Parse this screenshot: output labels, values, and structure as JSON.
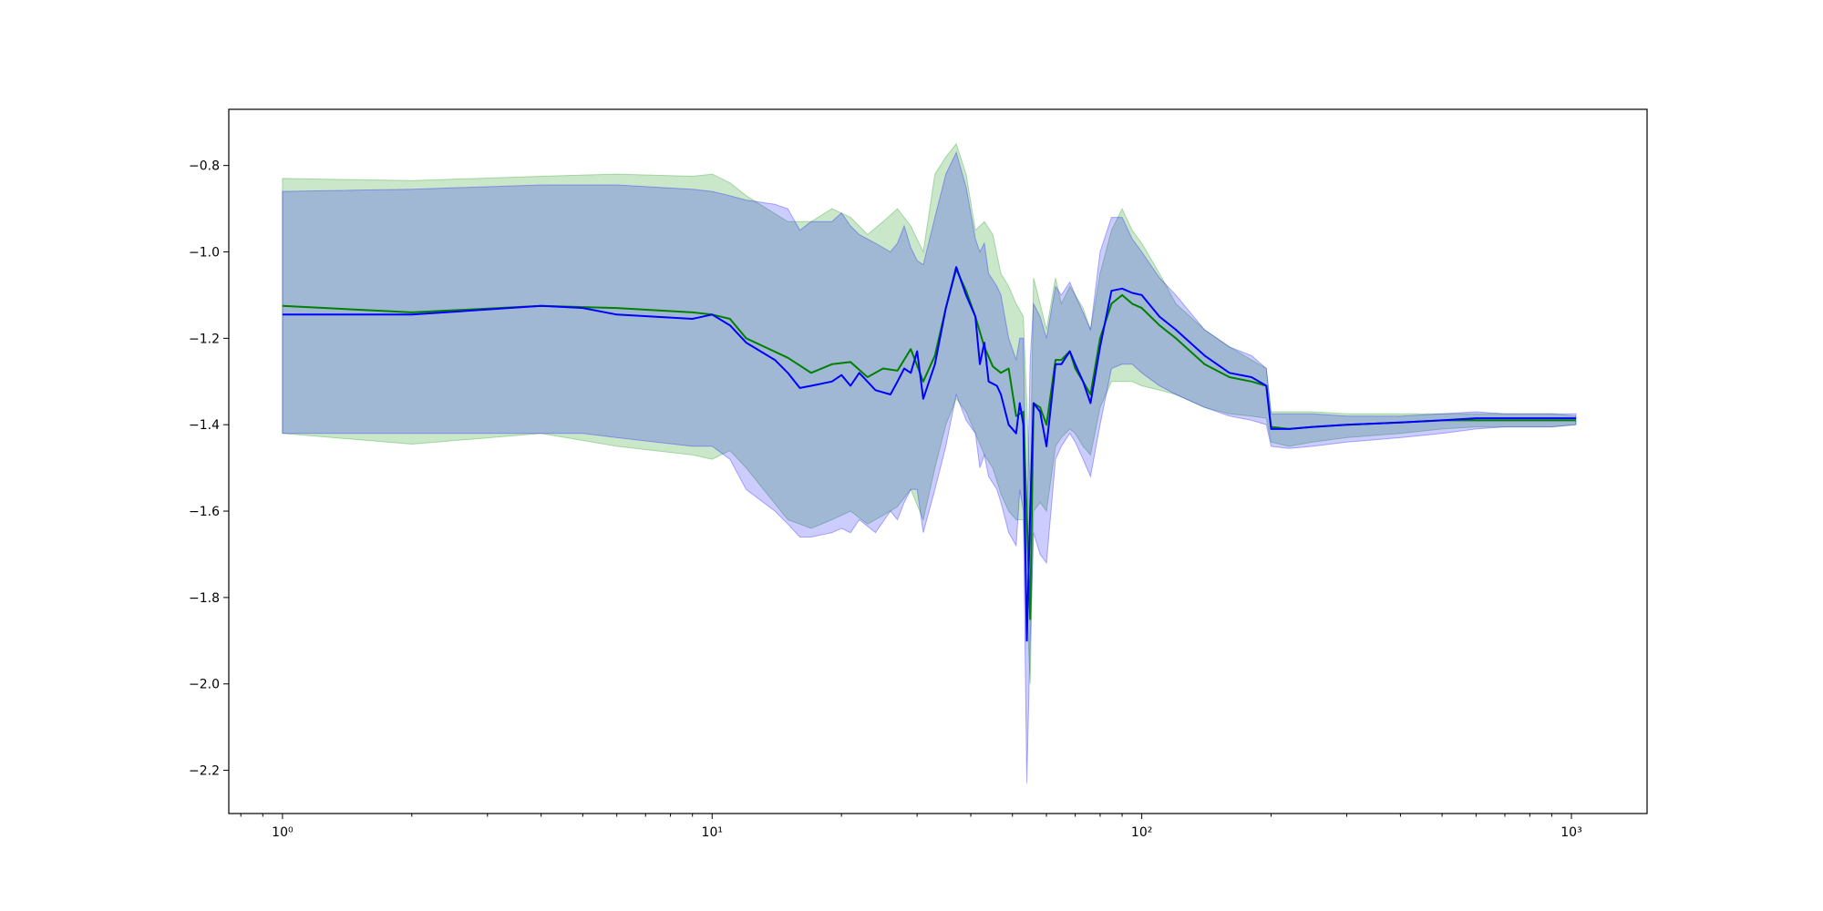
{
  "chart_data": {
    "type": "line",
    "xscale": "log",
    "xlim": [
      0.75,
      1500
    ],
    "ylim": [
      -2.3,
      -0.67
    ],
    "grid": false,
    "legend": "none",
    "title": "",
    "xlabel": "",
    "ylabel": "",
    "x_ticks": [
      {
        "value": 1,
        "label": "10⁰"
      },
      {
        "value": 10,
        "label": "10¹"
      },
      {
        "value": 100,
        "label": "10²"
      },
      {
        "value": 1000,
        "label": "10³"
      }
    ],
    "y_ticks": [
      {
        "value": -0.8,
        "label": "−0.8"
      },
      {
        "value": -1.0,
        "label": "−1.0"
      },
      {
        "value": -1.2,
        "label": "−1.2"
      },
      {
        "value": -1.4,
        "label": "−1.4"
      },
      {
        "value": -1.6,
        "label": "−1.6"
      },
      {
        "value": -1.8,
        "label": "−1.8"
      },
      {
        "value": -2.0,
        "label": "−2.0"
      },
      {
        "value": -2.2,
        "label": "−2.2"
      }
    ],
    "series": [
      {
        "color": "#008000",
        "band_color": "#2ca02c",
        "band_opacity": 0.25,
        "x": [
          1,
          2,
          4,
          6,
          9,
          10,
          11,
          12,
          15,
          17,
          19,
          21,
          23,
          25,
          27,
          29,
          31,
          33,
          35,
          37,
          39,
          41,
          43,
          45,
          47,
          49,
          51,
          53,
          55,
          56,
          58,
          60,
          63,
          65,
          68,
          70,
          73,
          76,
          80,
          85,
          90,
          95,
          100,
          110,
          120,
          140,
          160,
          180,
          195,
          200,
          220,
          250,
          300,
          400,
          500,
          600,
          700,
          800,
          900,
          1024
        ],
        "y": [
          -1.125,
          -1.14,
          -1.125,
          -1.13,
          -1.14,
          -1.145,
          -1.155,
          -1.2,
          -1.245,
          -1.28,
          -1.26,
          -1.255,
          -1.29,
          -1.27,
          -1.275,
          -1.225,
          -1.3,
          -1.24,
          -1.13,
          -1.04,
          -1.09,
          -1.15,
          -1.22,
          -1.265,
          -1.28,
          -1.27,
          -1.38,
          -1.37,
          -1.85,
          -1.35,
          -1.36,
          -1.4,
          -1.25,
          -1.25,
          -1.23,
          -1.27,
          -1.3,
          -1.33,
          -1.2,
          -1.12,
          -1.1,
          -1.12,
          -1.13,
          -1.17,
          -1.2,
          -1.26,
          -1.29,
          -1.3,
          -1.31,
          -1.405,
          -1.41,
          -1.405,
          -1.4,
          -1.395,
          -1.39,
          -1.39,
          -1.39,
          -1.39,
          -1.39,
          -1.39
        ],
        "upper": [
          -0.83,
          -0.835,
          -0.825,
          -0.82,
          -0.825,
          -0.82,
          -0.84,
          -0.87,
          -0.93,
          -0.93,
          -0.9,
          -0.92,
          -0.96,
          -0.93,
          -0.9,
          -0.94,
          -1.0,
          -0.82,
          -0.78,
          -0.75,
          -0.82,
          -0.95,
          -0.93,
          -0.96,
          -1.05,
          -1.08,
          -1.12,
          -1.15,
          -1.55,
          -1.06,
          -1.12,
          -1.18,
          -1.06,
          -1.12,
          -1.08,
          -1.1,
          -1.13,
          -1.18,
          -1.05,
          -0.95,
          -0.9,
          -0.95,
          -0.98,
          -1.05,
          -1.12,
          -1.18,
          -1.22,
          -1.25,
          -1.27,
          -1.37,
          -1.37,
          -1.37,
          -1.375,
          -1.375,
          -1.375,
          -1.375,
          -1.375,
          -1.375,
          -1.375,
          -1.38
        ],
        "lower": [
          -1.42,
          -1.445,
          -1.42,
          -1.45,
          -1.47,
          -1.48,
          -1.46,
          -1.5,
          -1.62,
          -1.64,
          -1.62,
          -1.6,
          -1.63,
          -1.61,
          -1.59,
          -1.55,
          -1.62,
          -1.5,
          -1.4,
          -1.34,
          -1.37,
          -1.42,
          -1.47,
          -1.5,
          -1.56,
          -1.6,
          -1.62,
          -1.62,
          -2.0,
          -1.6,
          -1.58,
          -1.6,
          -1.45,
          -1.43,
          -1.41,
          -1.42,
          -1.45,
          -1.47,
          -1.36,
          -1.3,
          -1.3,
          -1.3,
          -1.31,
          -1.32,
          -1.33,
          -1.36,
          -1.375,
          -1.38,
          -1.385,
          -1.44,
          -1.45,
          -1.44,
          -1.43,
          -1.42,
          -1.41,
          -1.405,
          -1.405,
          -1.405,
          -1.405,
          -1.4
        ]
      },
      {
        "color": "#0000ff",
        "band_color": "#0000ff",
        "band_opacity": 0.2,
        "x": [
          1,
          2,
          4,
          5,
          6,
          9,
          10,
          11,
          12,
          14,
          15,
          16,
          17,
          19,
          20,
          21,
          22,
          24,
          26,
          27,
          28,
          29,
          30,
          31,
          33,
          35,
          37,
          39,
          41,
          42,
          43,
          44,
          46,
          47,
          49,
          51,
          52,
          53,
          54,
          55,
          56,
          58,
          60,
          63,
          65,
          68,
          70,
          73,
          76,
          80,
          85,
          90,
          95,
          100,
          110,
          120,
          140,
          160,
          180,
          195,
          200,
          220,
          250,
          300,
          400,
          500,
          600,
          700,
          800,
          900,
          1024
        ],
        "y": [
          -1.145,
          -1.145,
          -1.125,
          -1.13,
          -1.145,
          -1.155,
          -1.145,
          -1.17,
          -1.21,
          -1.25,
          -1.28,
          -1.315,
          -1.31,
          -1.3,
          -1.285,
          -1.31,
          -1.28,
          -1.32,
          -1.33,
          -1.3,
          -1.27,
          -1.28,
          -1.23,
          -1.34,
          -1.26,
          -1.13,
          -1.035,
          -1.1,
          -1.15,
          -1.26,
          -1.21,
          -1.3,
          -1.31,
          -1.33,
          -1.4,
          -1.42,
          -1.35,
          -1.4,
          -1.9,
          -1.6,
          -1.35,
          -1.37,
          -1.45,
          -1.26,
          -1.26,
          -1.23,
          -1.26,
          -1.3,
          -1.35,
          -1.22,
          -1.09,
          -1.085,
          -1.095,
          -1.1,
          -1.15,
          -1.18,
          -1.24,
          -1.28,
          -1.29,
          -1.31,
          -1.41,
          -1.41,
          -1.405,
          -1.4,
          -1.395,
          -1.39,
          -1.385,
          -1.385,
          -1.385,
          -1.385,
          -1.385
        ],
        "upper": [
          -0.86,
          -0.855,
          -0.845,
          -0.845,
          -0.845,
          -0.855,
          -0.86,
          -0.87,
          -0.88,
          -0.89,
          -0.9,
          -0.95,
          -0.93,
          -0.93,
          -0.91,
          -0.94,
          -0.96,
          -0.98,
          -1.0,
          -0.98,
          -0.94,
          -0.99,
          -1.02,
          -1.03,
          -0.92,
          -0.82,
          -0.77,
          -0.85,
          -0.97,
          -1.0,
          -0.98,
          -1.05,
          -1.08,
          -1.1,
          -1.2,
          -1.25,
          -1.2,
          -1.2,
          -1.65,
          -1.25,
          -1.12,
          -1.15,
          -1.2,
          -1.08,
          -1.1,
          -1.07,
          -1.1,
          -1.14,
          -1.18,
          -1.0,
          -0.92,
          -0.92,
          -0.97,
          -1.0,
          -1.06,
          -1.1,
          -1.18,
          -1.22,
          -1.24,
          -1.27,
          -1.375,
          -1.375,
          -1.375,
          -1.38,
          -1.38,
          -1.375,
          -1.37,
          -1.375,
          -1.375,
          -1.375,
          -1.375
        ],
        "lower": [
          -1.42,
          -1.42,
          -1.42,
          -1.42,
          -1.43,
          -1.45,
          -1.45,
          -1.48,
          -1.55,
          -1.6,
          -1.63,
          -1.66,
          -1.66,
          -1.65,
          -1.64,
          -1.65,
          -1.62,
          -1.65,
          -1.6,
          -1.62,
          -1.58,
          -1.55,
          -1.55,
          -1.65,
          -1.55,
          -1.45,
          -1.33,
          -1.39,
          -1.42,
          -1.5,
          -1.47,
          -1.52,
          -1.55,
          -1.58,
          -1.65,
          -1.68,
          -1.55,
          -1.6,
          -2.23,
          -1.9,
          -1.65,
          -1.7,
          -1.72,
          -1.48,
          -1.45,
          -1.42,
          -1.44,
          -1.48,
          -1.52,
          -1.4,
          -1.27,
          -1.26,
          -1.26,
          -1.28,
          -1.31,
          -1.33,
          -1.36,
          -1.38,
          -1.39,
          -1.4,
          -1.45,
          -1.455,
          -1.45,
          -1.44,
          -1.43,
          -1.42,
          -1.41,
          -1.405,
          -1.405,
          -1.405,
          -1.4
        ]
      }
    ]
  }
}
